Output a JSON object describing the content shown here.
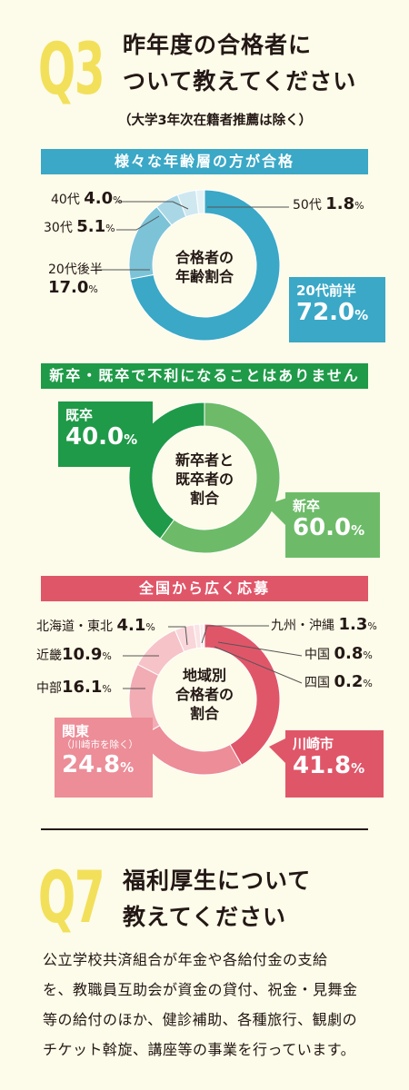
{
  "q3": {
    "num": "Q3",
    "title_line1": "昨年度の合格者に",
    "title_line2": "ついて教えてください",
    "subtitle": "（大学3年次在籍者推薦は除く）"
  },
  "chart_data": [
    {
      "type": "pie",
      "title": "様々な年齢層の方が合格",
      "center_label": [
        "合格者の",
        "年齢割合"
      ],
      "unit": "%",
      "series": [
        {
          "name": "20代前半",
          "value": 72.0,
          "value_text": "72.0",
          "color": "#3aa8c6"
        },
        {
          "name": "20代後半",
          "value": 17.0,
          "value_text": "17.0",
          "color": "#7cc3d8"
        },
        {
          "name": "30代",
          "value": 5.1,
          "value_text": "5.1",
          "color": "#a9d7e6"
        },
        {
          "name": "40代",
          "value": 4.0,
          "value_text": "4.0",
          "color": "#cfe8f0"
        },
        {
          "name": "50代",
          "value": 1.8,
          "value_text": "1.8",
          "color": "#e4f2f6"
        }
      ]
    },
    {
      "type": "pie",
      "title": "新卒・既卒で不利になることはありません",
      "center_label": [
        "新卒者と",
        "既卒者の",
        "割合"
      ],
      "unit": "%",
      "series": [
        {
          "name": "新卒",
          "value": 60.0,
          "value_text": "60.0",
          "color": "#6dbb68"
        },
        {
          "name": "既卒",
          "value": 40.0,
          "value_text": "40.0",
          "color": "#1f9a48"
        }
      ]
    },
    {
      "type": "pie",
      "title": "全国から広く応募",
      "center_label": [
        "地域別",
        "合格者の",
        "割合"
      ],
      "unit": "%",
      "series": [
        {
          "name": "川崎市",
          "value": 41.8,
          "value_text": "41.8",
          "color": "#e05669"
        },
        {
          "name": "関東",
          "note": "（川崎市を除く）",
          "value": 24.8,
          "value_text": "24.8",
          "color": "#ec8d98"
        },
        {
          "name": "中部",
          "value": 16.1,
          "value_text": "16.1",
          "color": "#f2acb4"
        },
        {
          "name": "近畿",
          "value": 10.9,
          "value_text": "10.9",
          "color": "#f6c3c8"
        },
        {
          "name": "北海道・東北",
          "value": 4.1,
          "value_text": "4.1",
          "color": "#f9d6d9"
        },
        {
          "name": "九州・沖縄",
          "value": 1.3,
          "value_text": "1.3",
          "color": "#fae3e5"
        },
        {
          "name": "中国",
          "value": 0.8,
          "value_text": "0.8",
          "color": "#fcecee"
        },
        {
          "name": "四国",
          "value": 0.2,
          "value_text": "0.2",
          "color": "#fdf2f3"
        }
      ]
    }
  ],
  "q7": {
    "num": "Q7",
    "title_line1": "福利厚生について",
    "title_line2": "教えてください",
    "body_lines": [
      "公立学校共済組合が年金や各給付金の支給",
      "を、教職員互助会が資金の貸付、祝金・見舞金",
      "等の給付のほか、健診補助、各種旅行、観劇の",
      "チケット斡旋、講座等の事業を行っています。"
    ]
  },
  "colors": {
    "background": "#fdfbe9",
    "q_number": "#f2e05a",
    "band_age": "#3aa8c6",
    "band_grad": "#1f9a48",
    "band_region": "#e05669"
  }
}
